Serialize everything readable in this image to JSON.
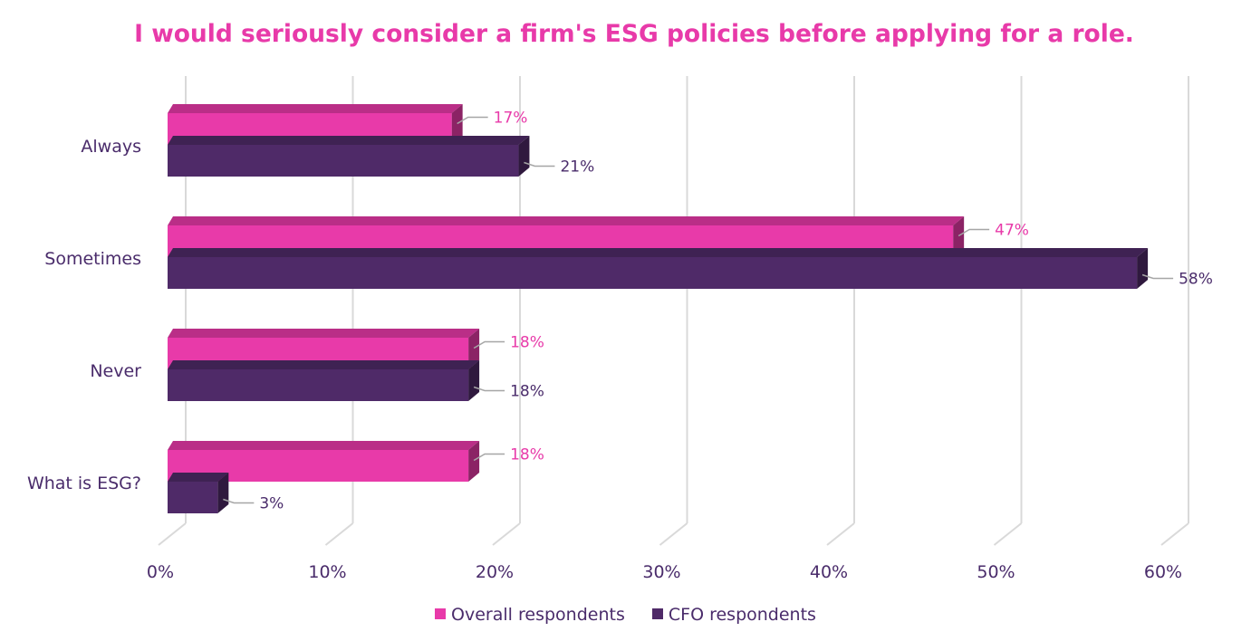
{
  "chart_data": {
    "type": "bar",
    "orientation": "horizontal",
    "title": "I would seriously consider a firm's ESG policies before applying for a role.",
    "categories": [
      "Always",
      "Sometimes",
      "Never",
      "What is ESG?"
    ],
    "series": [
      {
        "name": "Overall respondents",
        "values": [
          17,
          47,
          18,
          18
        ],
        "labels": [
          "17%",
          "47%",
          "18%",
          "18%"
        ],
        "color": "#e83aa9"
      },
      {
        "name": "CFO respondents",
        "values": [
          21,
          58,
          18,
          3
        ],
        "labels": [
          "21%",
          "58%",
          "18%",
          "3%"
        ],
        "color": "#4f2a68"
      }
    ],
    "x_ticks": [
      "0%",
      "10%",
      "20%",
      "30%",
      "40%",
      "50%",
      "60%"
    ],
    "xlim": [
      0,
      60
    ],
    "grid": true,
    "style": "3d",
    "legend_position": "bottom",
    "colors": {
      "title": "#e83aa9",
      "text": "#4a2c6b",
      "grid": "#d9d9d9",
      "leader": "#a6a6a6"
    }
  }
}
